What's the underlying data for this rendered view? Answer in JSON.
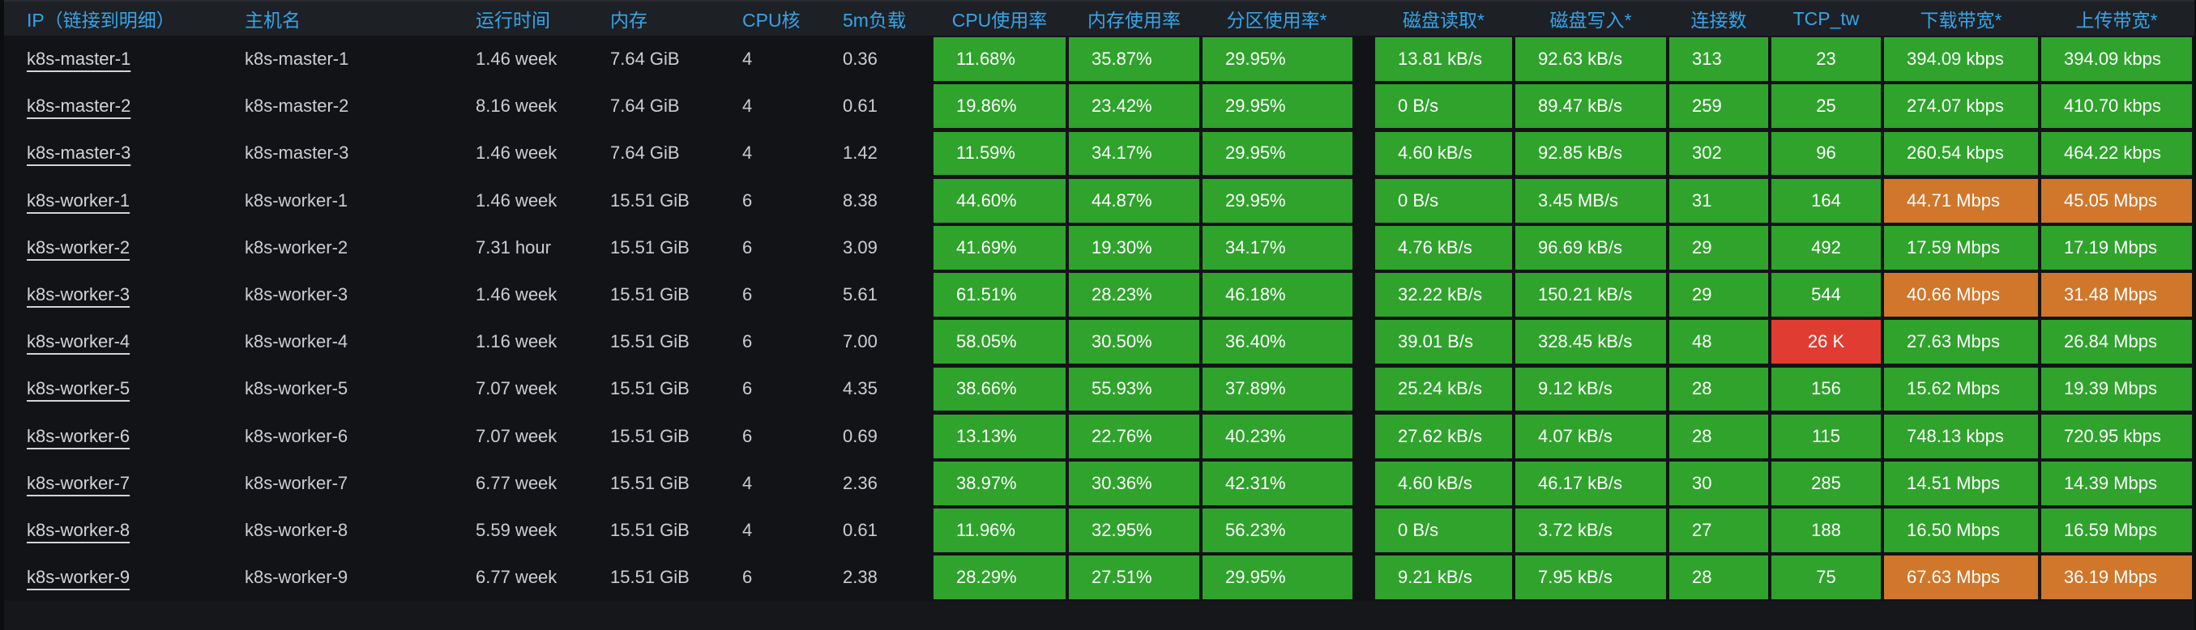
{
  "panel": {
    "type": "grafana-table",
    "colors": {
      "header_text": "#35a5e9",
      "row_text": "#ccced3",
      "cell_green": "#2fa32c",
      "cell_orange": "#d0772b",
      "cell_red": "#e13c31",
      "header_bg": "#1d2025",
      "body_bg": "#121317",
      "panel_bg": "#16171b"
    }
  },
  "table": {
    "columns": [
      {
        "key": "ip",
        "label": "IP（链接到明细）"
      },
      {
        "key": "hostname",
        "label": "主机名"
      },
      {
        "key": "uptime",
        "label": "运行时间"
      },
      {
        "key": "memory",
        "label": "内存"
      },
      {
        "key": "cpu-cores",
        "label": "CPU核"
      },
      {
        "key": "load-5m",
        "label": "5m负载"
      },
      {
        "key": "cpu-usage",
        "label": "CPU使用率"
      },
      {
        "key": "mem-usage",
        "label": "内存使用率"
      },
      {
        "key": "partition-usage",
        "label": "分区使用率*"
      },
      {
        "key": "disk-read",
        "label": "磁盘读取*"
      },
      {
        "key": "disk-write",
        "label": "磁盘写入*"
      },
      {
        "key": "connections",
        "label": "连接数"
      },
      {
        "key": "tcp-tw",
        "label": "TCP_tw"
      },
      {
        "key": "download-bw",
        "label": "下载带宽*"
      },
      {
        "key": "upload-bw",
        "label": "上传带宽*"
      }
    ],
    "rows": [
      {
        "cells": [
          {
            "v": "k8s-master-1"
          },
          {
            "v": "k8s-master-1"
          },
          {
            "v": "1.46 week"
          },
          {
            "v": "7.64 GiB"
          },
          {
            "v": "4"
          },
          {
            "v": "0.36"
          },
          {
            "v": "11.68%",
            "c": "g"
          },
          {
            "v": "35.87%",
            "c": "g"
          },
          {
            "v": "29.95%",
            "c": "g"
          },
          {
            "v": "13.81 kB/s",
            "c": "g"
          },
          {
            "v": "92.63 kB/s",
            "c": "g"
          },
          {
            "v": "313",
            "c": "g"
          },
          {
            "v": "23",
            "c": "g"
          },
          {
            "v": "394.09 kbps",
            "c": "g"
          },
          {
            "v": "394.09 kbps",
            "c": "g"
          }
        ]
      },
      {
        "cells": [
          {
            "v": "k8s-master-2"
          },
          {
            "v": "k8s-master-2"
          },
          {
            "v": "8.16 week"
          },
          {
            "v": "7.64 GiB"
          },
          {
            "v": "4"
          },
          {
            "v": "0.61"
          },
          {
            "v": "19.86%",
            "c": "g"
          },
          {
            "v": "23.42%",
            "c": "g"
          },
          {
            "v": "29.95%",
            "c": "g"
          },
          {
            "v": "0 B/s",
            "c": "g"
          },
          {
            "v": "89.47 kB/s",
            "c": "g"
          },
          {
            "v": "259",
            "c": "g"
          },
          {
            "v": "25",
            "c": "g"
          },
          {
            "v": "274.07 kbps",
            "c": "g"
          },
          {
            "v": "410.70 kbps",
            "c": "g"
          }
        ]
      },
      {
        "cells": [
          {
            "v": "k8s-master-3"
          },
          {
            "v": "k8s-master-3"
          },
          {
            "v": "1.46 week"
          },
          {
            "v": "7.64 GiB"
          },
          {
            "v": "4"
          },
          {
            "v": "1.42"
          },
          {
            "v": "11.59%",
            "c": "g"
          },
          {
            "v": "34.17%",
            "c": "g"
          },
          {
            "v": "29.95%",
            "c": "g"
          },
          {
            "v": "4.60 kB/s",
            "c": "g"
          },
          {
            "v": "92.85 kB/s",
            "c": "g"
          },
          {
            "v": "302",
            "c": "g"
          },
          {
            "v": "96",
            "c": "g"
          },
          {
            "v": "260.54 kbps",
            "c": "g"
          },
          {
            "v": "464.22 kbps",
            "c": "g"
          }
        ]
      },
      {
        "cells": [
          {
            "v": "k8s-worker-1"
          },
          {
            "v": "k8s-worker-1"
          },
          {
            "v": "1.46 week"
          },
          {
            "v": "15.51 GiB"
          },
          {
            "v": "6"
          },
          {
            "v": "8.38"
          },
          {
            "v": "44.60%",
            "c": "g"
          },
          {
            "v": "44.87%",
            "c": "g"
          },
          {
            "v": "29.95%",
            "c": "g"
          },
          {
            "v": "0 B/s",
            "c": "g"
          },
          {
            "v": "3.45 MB/s",
            "c": "g"
          },
          {
            "v": "31",
            "c": "g"
          },
          {
            "v": "164",
            "c": "g"
          },
          {
            "v": "44.71 Mbps",
            "c": "o"
          },
          {
            "v": "45.05 Mbps",
            "c": "o"
          }
        ]
      },
      {
        "cells": [
          {
            "v": "k8s-worker-2"
          },
          {
            "v": "k8s-worker-2"
          },
          {
            "v": "7.31 hour"
          },
          {
            "v": "15.51 GiB"
          },
          {
            "v": "6"
          },
          {
            "v": "3.09"
          },
          {
            "v": "41.69%",
            "c": "g"
          },
          {
            "v": "19.30%",
            "c": "g"
          },
          {
            "v": "34.17%",
            "c": "g"
          },
          {
            "v": "4.76 kB/s",
            "c": "g"
          },
          {
            "v": "96.69 kB/s",
            "c": "g"
          },
          {
            "v": "29",
            "c": "g"
          },
          {
            "v": "492",
            "c": "g"
          },
          {
            "v": "17.59 Mbps",
            "c": "g"
          },
          {
            "v": "17.19 Mbps",
            "c": "g"
          }
        ]
      },
      {
        "cells": [
          {
            "v": "k8s-worker-3"
          },
          {
            "v": "k8s-worker-3"
          },
          {
            "v": "1.46 week"
          },
          {
            "v": "15.51 GiB"
          },
          {
            "v": "6"
          },
          {
            "v": "5.61"
          },
          {
            "v": "61.51%",
            "c": "g"
          },
          {
            "v": "28.23%",
            "c": "g"
          },
          {
            "v": "46.18%",
            "c": "g"
          },
          {
            "v": "32.22 kB/s",
            "c": "g"
          },
          {
            "v": "150.21 kB/s",
            "c": "g"
          },
          {
            "v": "29",
            "c": "g"
          },
          {
            "v": "544",
            "c": "g"
          },
          {
            "v": "40.66 Mbps",
            "c": "o"
          },
          {
            "v": "31.48 Mbps",
            "c": "o"
          }
        ]
      },
      {
        "cells": [
          {
            "v": "k8s-worker-4"
          },
          {
            "v": "k8s-worker-4"
          },
          {
            "v": "1.16 week"
          },
          {
            "v": "15.51 GiB"
          },
          {
            "v": "6"
          },
          {
            "v": "7.00"
          },
          {
            "v": "58.05%",
            "c": "g"
          },
          {
            "v": "30.50%",
            "c": "g"
          },
          {
            "v": "36.40%",
            "c": "g"
          },
          {
            "v": "39.01 B/s",
            "c": "g"
          },
          {
            "v": "328.45 kB/s",
            "c": "g"
          },
          {
            "v": "48",
            "c": "g"
          },
          {
            "v": "26 K",
            "c": "r"
          },
          {
            "v": "27.63 Mbps",
            "c": "g"
          },
          {
            "v": "26.84 Mbps",
            "c": "g"
          }
        ]
      },
      {
        "cells": [
          {
            "v": "k8s-worker-5"
          },
          {
            "v": "k8s-worker-5"
          },
          {
            "v": "7.07 week"
          },
          {
            "v": "15.51 GiB"
          },
          {
            "v": "6"
          },
          {
            "v": "4.35"
          },
          {
            "v": "38.66%",
            "c": "g"
          },
          {
            "v": "55.93%",
            "c": "g"
          },
          {
            "v": "37.89%",
            "c": "g"
          },
          {
            "v": "25.24 kB/s",
            "c": "g"
          },
          {
            "v": "9.12 kB/s",
            "c": "g"
          },
          {
            "v": "28",
            "c": "g"
          },
          {
            "v": "156",
            "c": "g"
          },
          {
            "v": "15.62 Mbps",
            "c": "g"
          },
          {
            "v": "19.39 Mbps",
            "c": "g"
          }
        ]
      },
      {
        "cells": [
          {
            "v": "k8s-worker-6"
          },
          {
            "v": "k8s-worker-6"
          },
          {
            "v": "7.07 week"
          },
          {
            "v": "15.51 GiB"
          },
          {
            "v": "6"
          },
          {
            "v": "0.69"
          },
          {
            "v": "13.13%",
            "c": "g"
          },
          {
            "v": "22.76%",
            "c": "g"
          },
          {
            "v": "40.23%",
            "c": "g"
          },
          {
            "v": "27.62 kB/s",
            "c": "g"
          },
          {
            "v": "4.07 kB/s",
            "c": "g"
          },
          {
            "v": "28",
            "c": "g"
          },
          {
            "v": "115",
            "c": "g"
          },
          {
            "v": "748.13 kbps",
            "c": "g"
          },
          {
            "v": "720.95 kbps",
            "c": "g"
          }
        ]
      },
      {
        "cells": [
          {
            "v": "k8s-worker-7"
          },
          {
            "v": "k8s-worker-7"
          },
          {
            "v": "6.77 week"
          },
          {
            "v": "15.51 GiB"
          },
          {
            "v": "4"
          },
          {
            "v": "2.36"
          },
          {
            "v": "38.97%",
            "c": "g"
          },
          {
            "v": "30.36%",
            "c": "g"
          },
          {
            "v": "42.31%",
            "c": "g"
          },
          {
            "v": "4.60 kB/s",
            "c": "g"
          },
          {
            "v": "46.17 kB/s",
            "c": "g"
          },
          {
            "v": "30",
            "c": "g"
          },
          {
            "v": "285",
            "c": "g"
          },
          {
            "v": "14.51 Mbps",
            "c": "g"
          },
          {
            "v": "14.39 Mbps",
            "c": "g"
          }
        ]
      },
      {
        "cells": [
          {
            "v": "k8s-worker-8"
          },
          {
            "v": "k8s-worker-8"
          },
          {
            "v": "5.59 week"
          },
          {
            "v": "15.51 GiB"
          },
          {
            "v": "4"
          },
          {
            "v": "0.61"
          },
          {
            "v": "11.96%",
            "c": "g"
          },
          {
            "v": "32.95%",
            "c": "g"
          },
          {
            "v": "56.23%",
            "c": "g"
          },
          {
            "v": "0 B/s",
            "c": "g"
          },
          {
            "v": "3.72 kB/s",
            "c": "g"
          },
          {
            "v": "27",
            "c": "g"
          },
          {
            "v": "188",
            "c": "g"
          },
          {
            "v": "16.50 Mbps",
            "c": "g"
          },
          {
            "v": "16.59 Mbps",
            "c": "g"
          }
        ]
      },
      {
        "cells": [
          {
            "v": "k8s-worker-9"
          },
          {
            "v": "k8s-worker-9"
          },
          {
            "v": "6.77 week"
          },
          {
            "v": "15.51 GiB"
          },
          {
            "v": "6"
          },
          {
            "v": "2.38"
          },
          {
            "v": "28.29%",
            "c": "g"
          },
          {
            "v": "27.51%",
            "c": "g"
          },
          {
            "v": "29.95%",
            "c": "g"
          },
          {
            "v": "9.21 kB/s",
            "c": "g"
          },
          {
            "v": "7.95 kB/s",
            "c": "g"
          },
          {
            "v": "28",
            "c": "g"
          },
          {
            "v": "75",
            "c": "g"
          },
          {
            "v": "67.63 Mbps",
            "c": "o"
          },
          {
            "v": "36.19 Mbps",
            "c": "o"
          }
        ]
      }
    ]
  }
}
